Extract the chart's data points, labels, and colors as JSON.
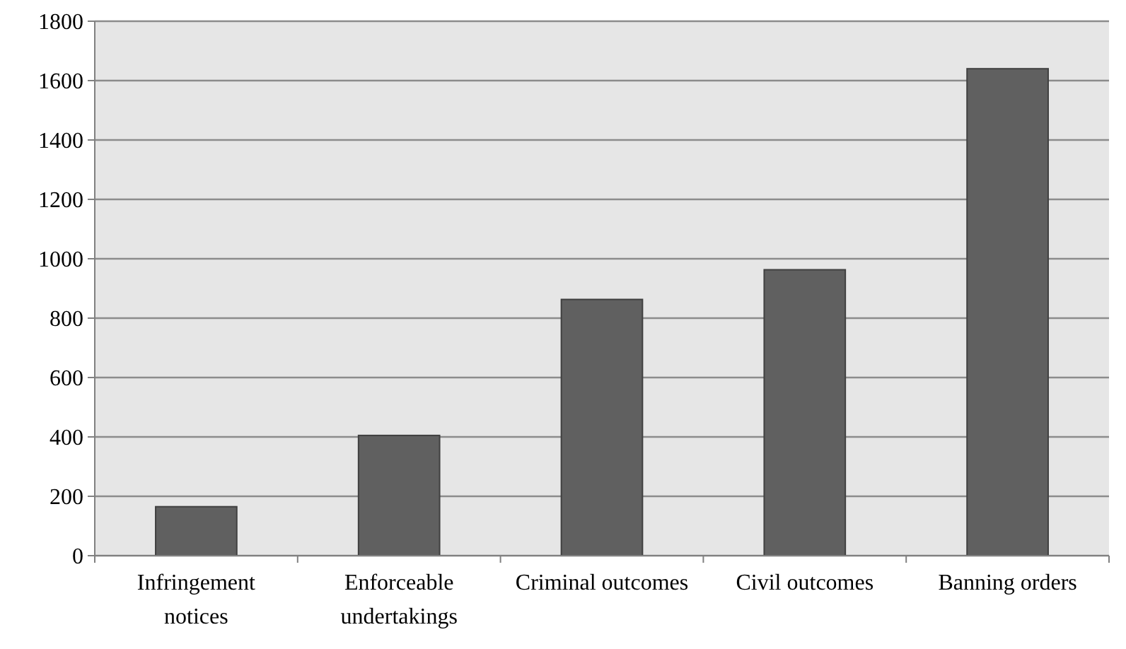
{
  "chart_data": {
    "type": "bar",
    "categories": [
      "Infringement notices",
      "Enforceable undertakings",
      "Criminal outcomes",
      "Civil outcomes",
      "Banning orders"
    ],
    "values": [
      165,
      405,
      863,
      963,
      1640
    ],
    "color": "#606060",
    "ylim": [
      0,
      1800
    ],
    "yticks": [
      0,
      200,
      400,
      600,
      800,
      1000,
      1200,
      1400,
      1600,
      1800
    ],
    "grid": "y"
  }
}
